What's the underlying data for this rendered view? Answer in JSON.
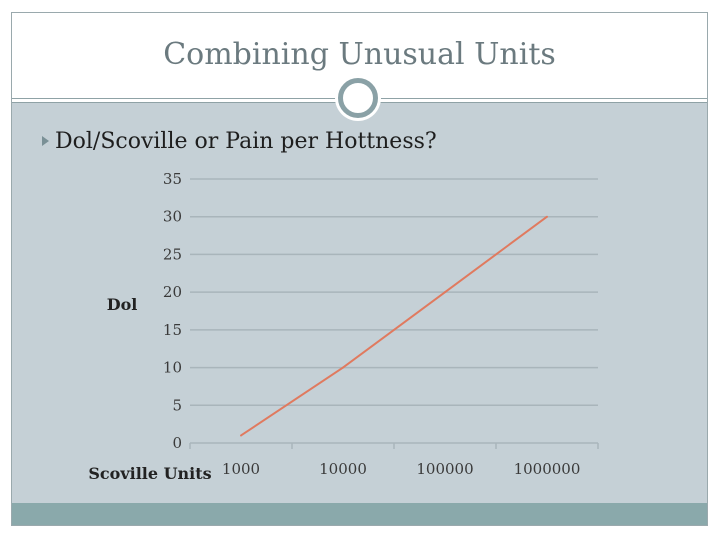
{
  "slide": {
    "title": "Combining Unusual Units",
    "bullet": "Dol/Scoville or Pain per Hottness?"
  },
  "colors": {
    "content_background": "#c5d0d6",
    "footer_band": "#8aa9ab",
    "line": "#e07a5f",
    "grid": "#a9b5bb"
  },
  "icons": {
    "bullet": "triangle-bullet-icon",
    "ring": "ring-icon"
  },
  "chart_data": {
    "type": "line",
    "categories": [
      "1000",
      "10000",
      "100000",
      "1000000"
    ],
    "series": [
      {
        "values": [
          1,
          10,
          20,
          30
        ]
      }
    ],
    "title": "",
    "xlabel": "Scoville Units",
    "ylabel": "Dol",
    "ylim": [
      0,
      35
    ],
    "yticks": [
      "0",
      "5",
      "10",
      "15",
      "20",
      "25",
      "30",
      "35"
    ],
    "grid": true,
    "legend": "none"
  }
}
